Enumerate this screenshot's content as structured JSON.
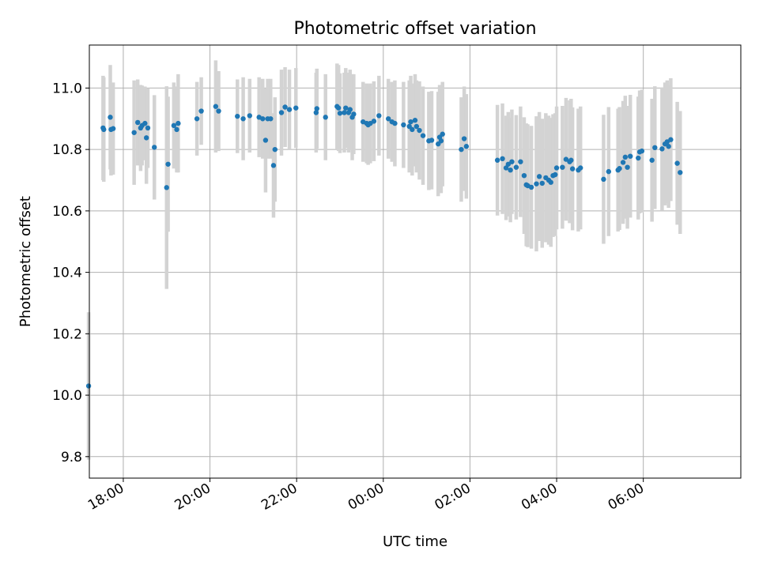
{
  "chart_data": {
    "type": "scatter",
    "title": "Photometric offset variation",
    "xlabel": "UTC time",
    "ylabel": "Photometric offset",
    "grid": true,
    "legend": "none",
    "x_ticks": [
      "18:00",
      "20:00",
      "22:00",
      "00:00",
      "02:00",
      "04:00",
      "06:00"
    ],
    "y_ticks": [
      "9.8",
      "10.0",
      "10.2",
      "10.4",
      "10.6",
      "10.8",
      "11.0"
    ],
    "xlim": [
      "17:13",
      "08:15"
    ],
    "ylim": [
      9.73,
      11.14
    ],
    "colors": {
      "point": "#1f77b4",
      "errorbar": "#d3d3d3",
      "grid": "#b0b0b0"
    },
    "series": [
      {
        "points": [
          {
            "t": "17:12",
            "y": 10.03,
            "e": 0.24
          },
          {
            "t": "17:32",
            "y": 10.87,
            "e": 0.17
          },
          {
            "t": "17:33",
            "y": 10.865,
            "e": 0.17
          },
          {
            "t": "17:42",
            "y": 10.905,
            "e": 0.17
          },
          {
            "t": "17:43",
            "y": 10.865,
            "e": 0.15
          },
          {
            "t": "17:46",
            "y": 10.868,
            "e": 0.15
          },
          {
            "t": "18:15",
            "y": 10.855,
            "e": 0.17
          },
          {
            "t": "18:20",
            "y": 10.888,
            "e": 0.14
          },
          {
            "t": "18:24",
            "y": 10.87,
            "e": 0.14
          },
          {
            "t": "18:26",
            "y": 10.878,
            "e": 0.13
          },
          {
            "t": "18:30",
            "y": 10.885,
            "e": 0.12
          },
          {
            "t": "18:32",
            "y": 10.838,
            "e": 0.15
          },
          {
            "t": "18:34",
            "y": 10.87,
            "e": 0.13
          },
          {
            "t": "18:43",
            "y": 10.807,
            "e": 0.17
          },
          {
            "t": "19:00",
            "y": 10.676,
            "e": 0.33
          },
          {
            "t": "19:02",
            "y": 10.752,
            "e": 0.22
          },
          {
            "t": "19:10",
            "y": 10.878,
            "e": 0.14
          },
          {
            "t": "19:14",
            "y": 10.865,
            "e": 0.14
          },
          {
            "t": "19:16",
            "y": 10.885,
            "e": 0.16
          },
          {
            "t": "19:42",
            "y": 10.9,
            "e": 0.12
          },
          {
            "t": "19:48",
            "y": 10.925,
            "e": 0.11
          },
          {
            "t": "20:08",
            "y": 10.94,
            "e": 0.15
          },
          {
            "t": "20:12",
            "y": 10.925,
            "e": 0.13
          },
          {
            "t": "20:38",
            "y": 10.908,
            "e": 0.12
          },
          {
            "t": "20:46",
            "y": 10.9,
            "e": 0.135
          },
          {
            "t": "20:55",
            "y": 10.91,
            "e": 0.12
          },
          {
            "t": "21:08",
            "y": 10.905,
            "e": 0.13
          },
          {
            "t": "21:13",
            "y": 10.9,
            "e": 0.13
          },
          {
            "t": "21:17",
            "y": 10.83,
            "e": 0.17
          },
          {
            "t": "21:20",
            "y": 10.9,
            "e": 0.13
          },
          {
            "t": "21:24",
            "y": 10.9,
            "e": 0.13
          },
          {
            "t": "21:28",
            "y": 10.748,
            "e": 0.17
          },
          {
            "t": "21:30",
            "y": 10.8,
            "e": 0.17
          },
          {
            "t": "21:39",
            "y": 10.92,
            "e": 0.14
          },
          {
            "t": "21:44",
            "y": 10.938,
            "e": 0.13
          },
          {
            "t": "21:50",
            "y": 10.93,
            "e": 0.13
          },
          {
            "t": "21:59",
            "y": 10.935,
            "e": 0.13
          },
          {
            "t": "22:27",
            "y": 10.92,
            "e": 0.13
          },
          {
            "t": "22:28",
            "y": 10.933,
            "e": 0.13
          },
          {
            "t": "22:40",
            "y": 10.905,
            "e": 0.14
          },
          {
            "t": "22:56",
            "y": 10.94,
            "e": 0.14
          },
          {
            "t": "22:58",
            "y": 10.935,
            "e": 0.14
          },
          {
            "t": "23:00",
            "y": 10.918,
            "e": 0.13
          },
          {
            "t": "23:06",
            "y": 10.92,
            "e": 0.13
          },
          {
            "t": "23:08",
            "y": 10.935,
            "e": 0.13
          },
          {
            "t": "23:12",
            "y": 10.92,
            "e": 0.13
          },
          {
            "t": "23:14",
            "y": 10.93,
            "e": 0.13
          },
          {
            "t": "23:17",
            "y": 10.905,
            "e": 0.14
          },
          {
            "t": "23:19",
            "y": 10.915,
            "e": 0.13
          },
          {
            "t": "23:32",
            "y": 10.89,
            "e": 0.13
          },
          {
            "t": "23:37",
            "y": 10.885,
            "e": 0.13
          },
          {
            "t": "23:39",
            "y": 10.88,
            "e": 0.13
          },
          {
            "t": "23:42",
            "y": 10.885,
            "e": 0.13
          },
          {
            "t": "23:47",
            "y": 10.892,
            "e": 0.13
          },
          {
            "t": "23:54",
            "y": 10.91,
            "e": 0.13
          },
          {
            "t": "00:07",
            "y": 10.9,
            "e": 0.13
          },
          {
            "t": "00:12",
            "y": 10.89,
            "e": 0.13
          },
          {
            "t": "00:16",
            "y": 10.885,
            "e": 0.14
          },
          {
            "t": "00:28",
            "y": 10.88,
            "e": 0.14
          },
          {
            "t": "00:36",
            "y": 10.875,
            "e": 0.15
          },
          {
            "t": "00:38",
            "y": 10.89,
            "e": 0.15
          },
          {
            "t": "00:40",
            "y": 10.865,
            "e": 0.15
          },
          {
            "t": "00:44",
            "y": 10.895,
            "e": 0.15
          },
          {
            "t": "00:46",
            "y": 10.875,
            "e": 0.15
          },
          {
            "t": "00:50",
            "y": 10.862,
            "e": 0.16
          },
          {
            "t": "00:55",
            "y": 10.845,
            "e": 0.16
          },
          {
            "t": "01:03",
            "y": 10.828,
            "e": 0.16
          },
          {
            "t": "01:07",
            "y": 10.83,
            "e": 0.16
          },
          {
            "t": "01:16",
            "y": 10.818,
            "e": 0.17
          },
          {
            "t": "01:18",
            "y": 10.84,
            "e": 0.17
          },
          {
            "t": "01:20",
            "y": 10.828,
            "e": 0.17
          },
          {
            "t": "01:22",
            "y": 10.85,
            "e": 0.17
          },
          {
            "t": "01:48",
            "y": 10.8,
            "e": 0.17
          },
          {
            "t": "01:52",
            "y": 10.835,
            "e": 0.17
          },
          {
            "t": "01:55",
            "y": 10.81,
            "e": 0.17
          },
          {
            "t": "02:38",
            "y": 10.765,
            "e": 0.18
          },
          {
            "t": "02:45",
            "y": 10.77,
            "e": 0.18
          },
          {
            "t": "02:50",
            "y": 10.74,
            "e": 0.17
          },
          {
            "t": "02:53",
            "y": 10.752,
            "e": 0.17
          },
          {
            "t": "02:56",
            "y": 10.733,
            "e": 0.17
          },
          {
            "t": "02:58",
            "y": 10.76,
            "e": 0.17
          },
          {
            "t": "03:04",
            "y": 10.742,
            "e": 0.17
          },
          {
            "t": "03:10",
            "y": 10.76,
            "e": 0.18
          },
          {
            "t": "03:15",
            "y": 10.715,
            "e": 0.19
          },
          {
            "t": "03:18",
            "y": 10.685,
            "e": 0.2
          },
          {
            "t": "03:20",
            "y": 10.682,
            "e": 0.2
          },
          {
            "t": "03:25",
            "y": 10.677,
            "e": 0.2
          },
          {
            "t": "03:32",
            "y": 10.688,
            "e": 0.22
          },
          {
            "t": "03:36",
            "y": 10.712,
            "e": 0.21
          },
          {
            "t": "03:40",
            "y": 10.69,
            "e": 0.21
          },
          {
            "t": "03:45",
            "y": 10.708,
            "e": 0.21
          },
          {
            "t": "03:49",
            "y": 10.7,
            "e": 0.21
          },
          {
            "t": "03:52",
            "y": 10.693,
            "e": 0.21
          },
          {
            "t": "03:55",
            "y": 10.715,
            "e": 0.2
          },
          {
            "t": "03:58",
            "y": 10.718,
            "e": 0.2
          },
          {
            "t": "04:00",
            "y": 10.74,
            "e": 0.2
          },
          {
            "t": "04:08",
            "y": 10.742,
            "e": 0.2
          },
          {
            "t": "04:13",
            "y": 10.768,
            "e": 0.2
          },
          {
            "t": "04:18",
            "y": 10.76,
            "e": 0.2
          },
          {
            "t": "04:20",
            "y": 10.765,
            "e": 0.2
          },
          {
            "t": "04:22",
            "y": 10.737,
            "e": 0.2
          },
          {
            "t": "04:30",
            "y": 10.733,
            "e": 0.2
          },
          {
            "t": "04:33",
            "y": 10.74,
            "e": 0.2
          },
          {
            "t": "05:05",
            "y": 10.703,
            "e": 0.21
          },
          {
            "t": "05:12",
            "y": 10.728,
            "e": 0.21
          },
          {
            "t": "05:25",
            "y": 10.733,
            "e": 0.2
          },
          {
            "t": "05:27",
            "y": 10.738,
            "e": 0.2
          },
          {
            "t": "05:32",
            "y": 10.758,
            "e": 0.2
          },
          {
            "t": "05:35",
            "y": 10.775,
            "e": 0.2
          },
          {
            "t": "05:38",
            "y": 10.742,
            "e": 0.2
          },
          {
            "t": "05:42",
            "y": 10.778,
            "e": 0.2
          },
          {
            "t": "05:53",
            "y": 10.772,
            "e": 0.2
          },
          {
            "t": "05:55",
            "y": 10.792,
            "e": 0.2
          },
          {
            "t": "05:58",
            "y": 10.795,
            "e": 0.2
          },
          {
            "t": "06:12",
            "y": 10.765,
            "e": 0.2
          },
          {
            "t": "06:16",
            "y": 10.806,
            "e": 0.2
          },
          {
            "t": "06:26",
            "y": 10.802,
            "e": 0.2
          },
          {
            "t": "06:30",
            "y": 10.818,
            "e": 0.2
          },
          {
            "t": "06:33",
            "y": 10.825,
            "e": 0.2
          },
          {
            "t": "06:35",
            "y": 10.81,
            "e": 0.2
          },
          {
            "t": "06:38",
            "y": 10.832,
            "e": 0.2
          },
          {
            "t": "06:47",
            "y": 10.755,
            "e": 0.2
          },
          {
            "t": "06:51",
            "y": 10.725,
            "e": 0.2
          }
        ]
      }
    ]
  }
}
